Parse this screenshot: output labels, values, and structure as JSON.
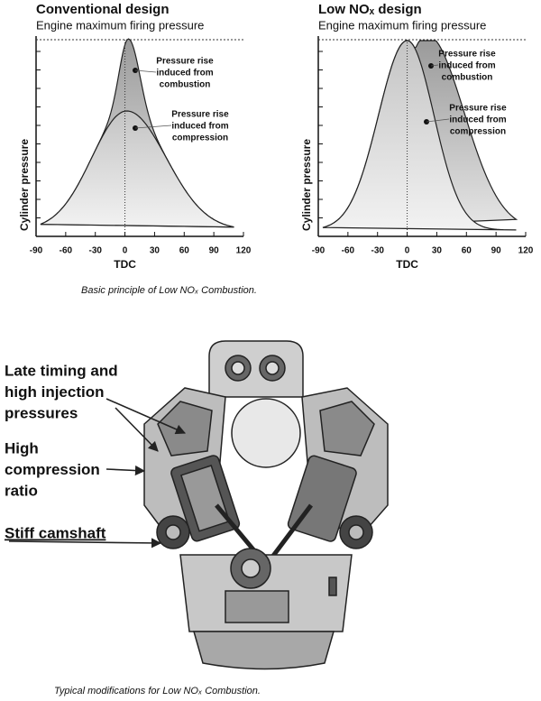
{
  "charts": [
    {
      "title": "Conventional design",
      "subtitle": "Engine maximum firing pressure",
      "y_label": "Cylinder pressure",
      "x_label": "TDC",
      "xticks": [
        -90,
        -60,
        -30,
        0,
        30,
        60,
        90,
        120
      ],
      "annotations": [
        [
          "Pressure rise",
          "induced from",
          "combustion"
        ],
        [
          "Pressure rise",
          "induced from",
          "compression"
        ]
      ]
    },
    {
      "title": "Low NOₓ design",
      "subtitle": "Engine maximum firing pressure",
      "y_label": "Cylinder pressure",
      "x_label": "TDC",
      "xticks": [
        -90,
        -60,
        -30,
        0,
        30,
        60,
        90,
        120
      ],
      "annotations": [
        [
          "Pressure rise",
          "induced from",
          "combustion"
        ],
        [
          "Pressure rise",
          "induced from",
          "compression"
        ]
      ]
    }
  ],
  "caption_top": "Basic principle of Low NOₓ Combustion.",
  "engine_labels": [
    [
      "Late timing and",
      "high injection",
      "pressures"
    ],
    [
      "High",
      "compression",
      "ratio"
    ],
    [
      "Stiff camshaft"
    ]
  ],
  "caption_bottom": "Typical modifications for Low NOₓ Combustion."
}
